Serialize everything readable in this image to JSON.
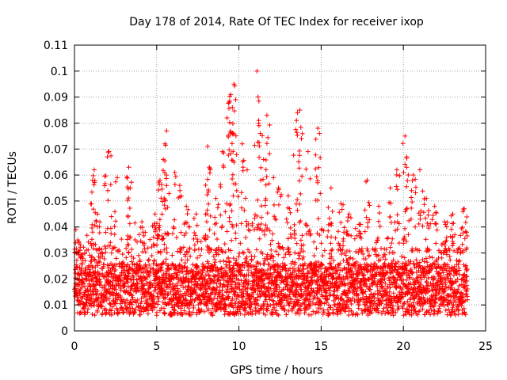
{
  "chart_data": {
    "type": "scatter",
    "title": "Day 178 of 2014, Rate Of TEC Index for receiver ixop",
    "xlabel": "GPS time / hours",
    "ylabel": "ROTI / TECUs",
    "xlim": [
      0,
      25
    ],
    "ylim": [
      0,
      0.11
    ],
    "x_ticks": [
      "0",
      "5",
      "10",
      "15",
      "20",
      "25"
    ],
    "y_ticks": [
      "0",
      "0.01",
      "0.02",
      "0.03",
      "0.04",
      "0.05",
      "0.06",
      "0.07",
      "0.08",
      "0.09",
      "0.1",
      "0.11"
    ],
    "grid": true,
    "marker": "+",
    "color": "#ff0000",
    "x_range_of_data": [
      0,
      23.9
    ],
    "series": [
      {
        "name": "ROTI",
        "x": [
          0.2,
          0.5,
          1.1,
          1.2,
          1.4,
          2.0,
          2.1,
          2.6,
          3.3,
          3.4,
          4.1,
          4.9,
          5.2,
          5.4,
          5.5,
          5.6,
          6.1,
          6.4,
          6.8,
          7.4,
          8.1,
          8.2,
          8.6,
          9.0,
          9.4,
          9.5,
          9.6,
          9.7,
          9.8,
          10.2,
          10.5,
          11.1,
          11.2,
          11.3,
          11.5,
          11.7,
          12.1,
          12.4,
          13.0,
          13.5,
          13.7,
          13.8,
          14.2,
          14.8,
          14.9,
          15.6,
          16.2,
          16.7,
          17.3,
          17.8,
          18.5,
          19.2,
          19.6,
          20.1,
          20.2,
          20.6,
          21.0,
          21.4,
          21.9,
          22.5,
          23.0,
          23.7
        ],
        "y": [
          0.035,
          0.028,
          0.058,
          0.062,
          0.045,
          0.067,
          0.069,
          0.059,
          0.063,
          0.055,
          0.042,
          0.045,
          0.058,
          0.066,
          0.072,
          0.077,
          0.061,
          0.056,
          0.048,
          0.045,
          0.071,
          0.063,
          0.051,
          0.069,
          0.088,
          0.091,
          0.086,
          0.095,
          0.089,
          0.072,
          0.062,
          0.1,
          0.081,
          0.076,
          0.066,
          0.083,
          0.059,
          0.055,
          0.052,
          0.081,
          0.085,
          0.074,
          0.069,
          0.078,
          0.076,
          0.055,
          0.049,
          0.045,
          0.041,
          0.058,
          0.048,
          0.055,
          0.062,
          0.075,
          0.067,
          0.06,
          0.062,
          0.051,
          0.048,
          0.042,
          0.045,
          0.047
        ]
      }
    ]
  }
}
